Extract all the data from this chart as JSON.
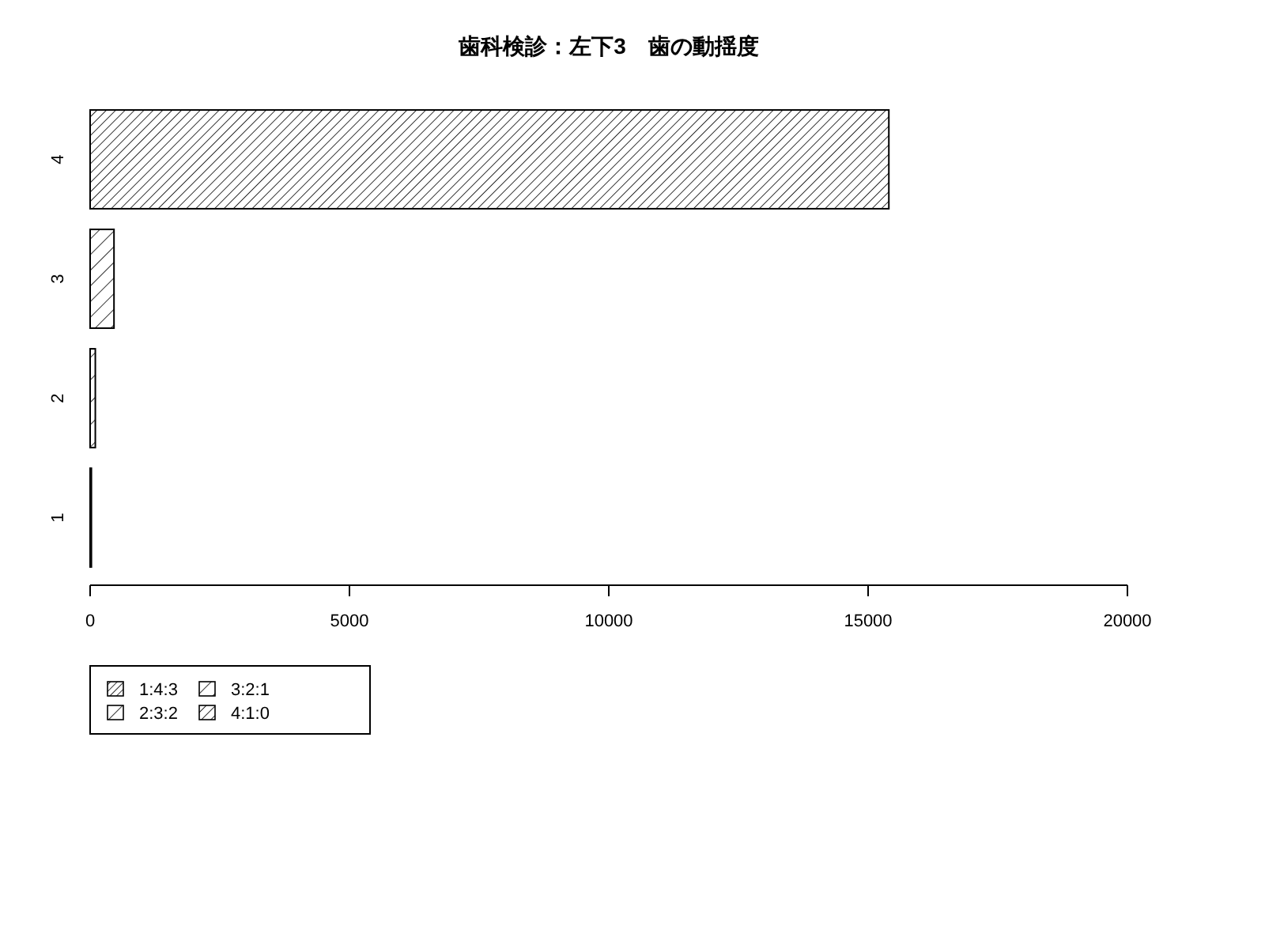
{
  "chart_data": {
    "type": "bar",
    "orientation": "horizontal",
    "stacked": true,
    "title": "歯科検診：左下3　歯の動揺度",
    "categories": [
      "4",
      "3",
      "2",
      "1"
    ],
    "series": [
      {
        "name": "1:4:3",
        "color": "#000000",
        "values": [
          null,
          null,
          null,
          20
        ]
      },
      {
        "name": "2:3:2",
        "color": "#000000",
        "values": [
          null,
          null,
          100,
          null
        ]
      },
      {
        "name": "3:2:1",
        "color": "#000000",
        "values": [
          null,
          460,
          null,
          null
        ]
      },
      {
        "name": "4:1:0",
        "color": "#000000",
        "values": [
          15400,
          null,
          null,
          null
        ]
      }
    ],
    "xlim": [
      0,
      20000
    ],
    "xticks": [
      0,
      5000,
      10000,
      15000,
      20000
    ],
    "legend": "bottom left"
  }
}
